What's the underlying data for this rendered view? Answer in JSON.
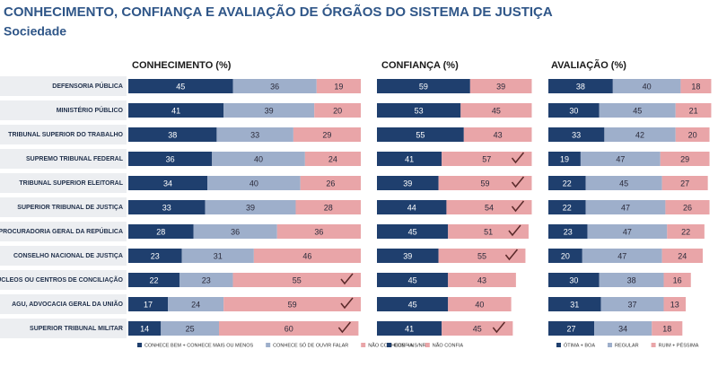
{
  "title": "CONHECIMENTO, CONFIANÇA E AVALIAÇÃO DE ÓRGÃOS DO SISTEMA DE JUSTIÇA",
  "subtitle": "Sociedade",
  "chart_data": [
    {
      "type": "stacked_bar",
      "title": "CONHECIMENTO (%)",
      "categories": [
        "DEFENSORIA PÚBLICA",
        "MINISTÉRIO PÚBLICO",
        "TRIBUNAL SUPERIOR DO TRABALHO",
        "SUPREMO TRIBUNAL FEDERAL",
        "TRIBUNAL SUPERIOR ELEITORAL",
        "SUPERIOR TRIBUNAL DE JUSTIÇA",
        "PROCURADORIA GERAL DA REPÚBLICA",
        "CONSELHO NACIONAL DE JUSTIÇA",
        "ÚCLEOS OU CENTROS DE CONCILIAÇÃO",
        "AGU, ADVOCACIA GERAL DA UNIÃO",
        "SUPERIOR TRIBUNAL MILITAR"
      ],
      "xlim": [
        0,
        100
      ],
      "series": [
        {
          "name": "CONHECE BEM + CONHECE MAIS OU MENOS",
          "color": "#1f3f6e",
          "values": [
            45,
            41,
            38,
            36,
            34,
            33,
            28,
            23,
            22,
            17,
            14
          ]
        },
        {
          "name": "CONHECE SÓ DE OUVIR FALAR",
          "color": "#9eafcb",
          "values": [
            36,
            39,
            33,
            40,
            40,
            39,
            36,
            31,
            23,
            24,
            25
          ]
        },
        {
          "name": "NÃO CONHECE + NS/NR",
          "color": "#e9a5a8",
          "values": [
            19,
            20,
            29,
            24,
            26,
            28,
            36,
            46,
            55,
            59,
            60
          ]
        }
      ],
      "checks": [
        false,
        false,
        false,
        false,
        false,
        false,
        false,
        false,
        true,
        true,
        true
      ]
    },
    {
      "type": "stacked_bar",
      "title": "CONFIANÇA (%)",
      "xlim": [
        0,
        100
      ],
      "series": [
        {
          "name": "CONFIA",
          "color": "#1f3f6e",
          "values": [
            59,
            53,
            55,
            41,
            39,
            44,
            45,
            39,
            45,
            45,
            41
          ]
        },
        {
          "name": "NÃO CONFIA",
          "color": "#e9a5a8",
          "values": [
            39,
            45,
            43,
            57,
            59,
            54,
            51,
            55,
            43,
            40,
            45
          ]
        }
      ],
      "checks": [
        false,
        false,
        false,
        true,
        true,
        true,
        true,
        true,
        false,
        false,
        true
      ]
    },
    {
      "type": "stacked_bar",
      "title": "AVALIAÇÃO (%)",
      "xlim": [
        0,
        100
      ],
      "series": [
        {
          "name": "ÓTIMA + BOA",
          "color": "#1f3f6e",
          "values": [
            38,
            30,
            33,
            19,
            22,
            22,
            23,
            20,
            30,
            31,
            27
          ]
        },
        {
          "name": "REGULAR",
          "color": "#9eafcb",
          "values": [
            40,
            45,
            42,
            47,
            45,
            47,
            47,
            47,
            38,
            37,
            34
          ]
        },
        {
          "name": "RUIM + PÉSSIMA",
          "color": "#e9a5a8",
          "values": [
            18,
            21,
            20,
            29,
            27,
            26,
            22,
            24,
            16,
            13,
            18
          ]
        }
      ]
    }
  ]
}
